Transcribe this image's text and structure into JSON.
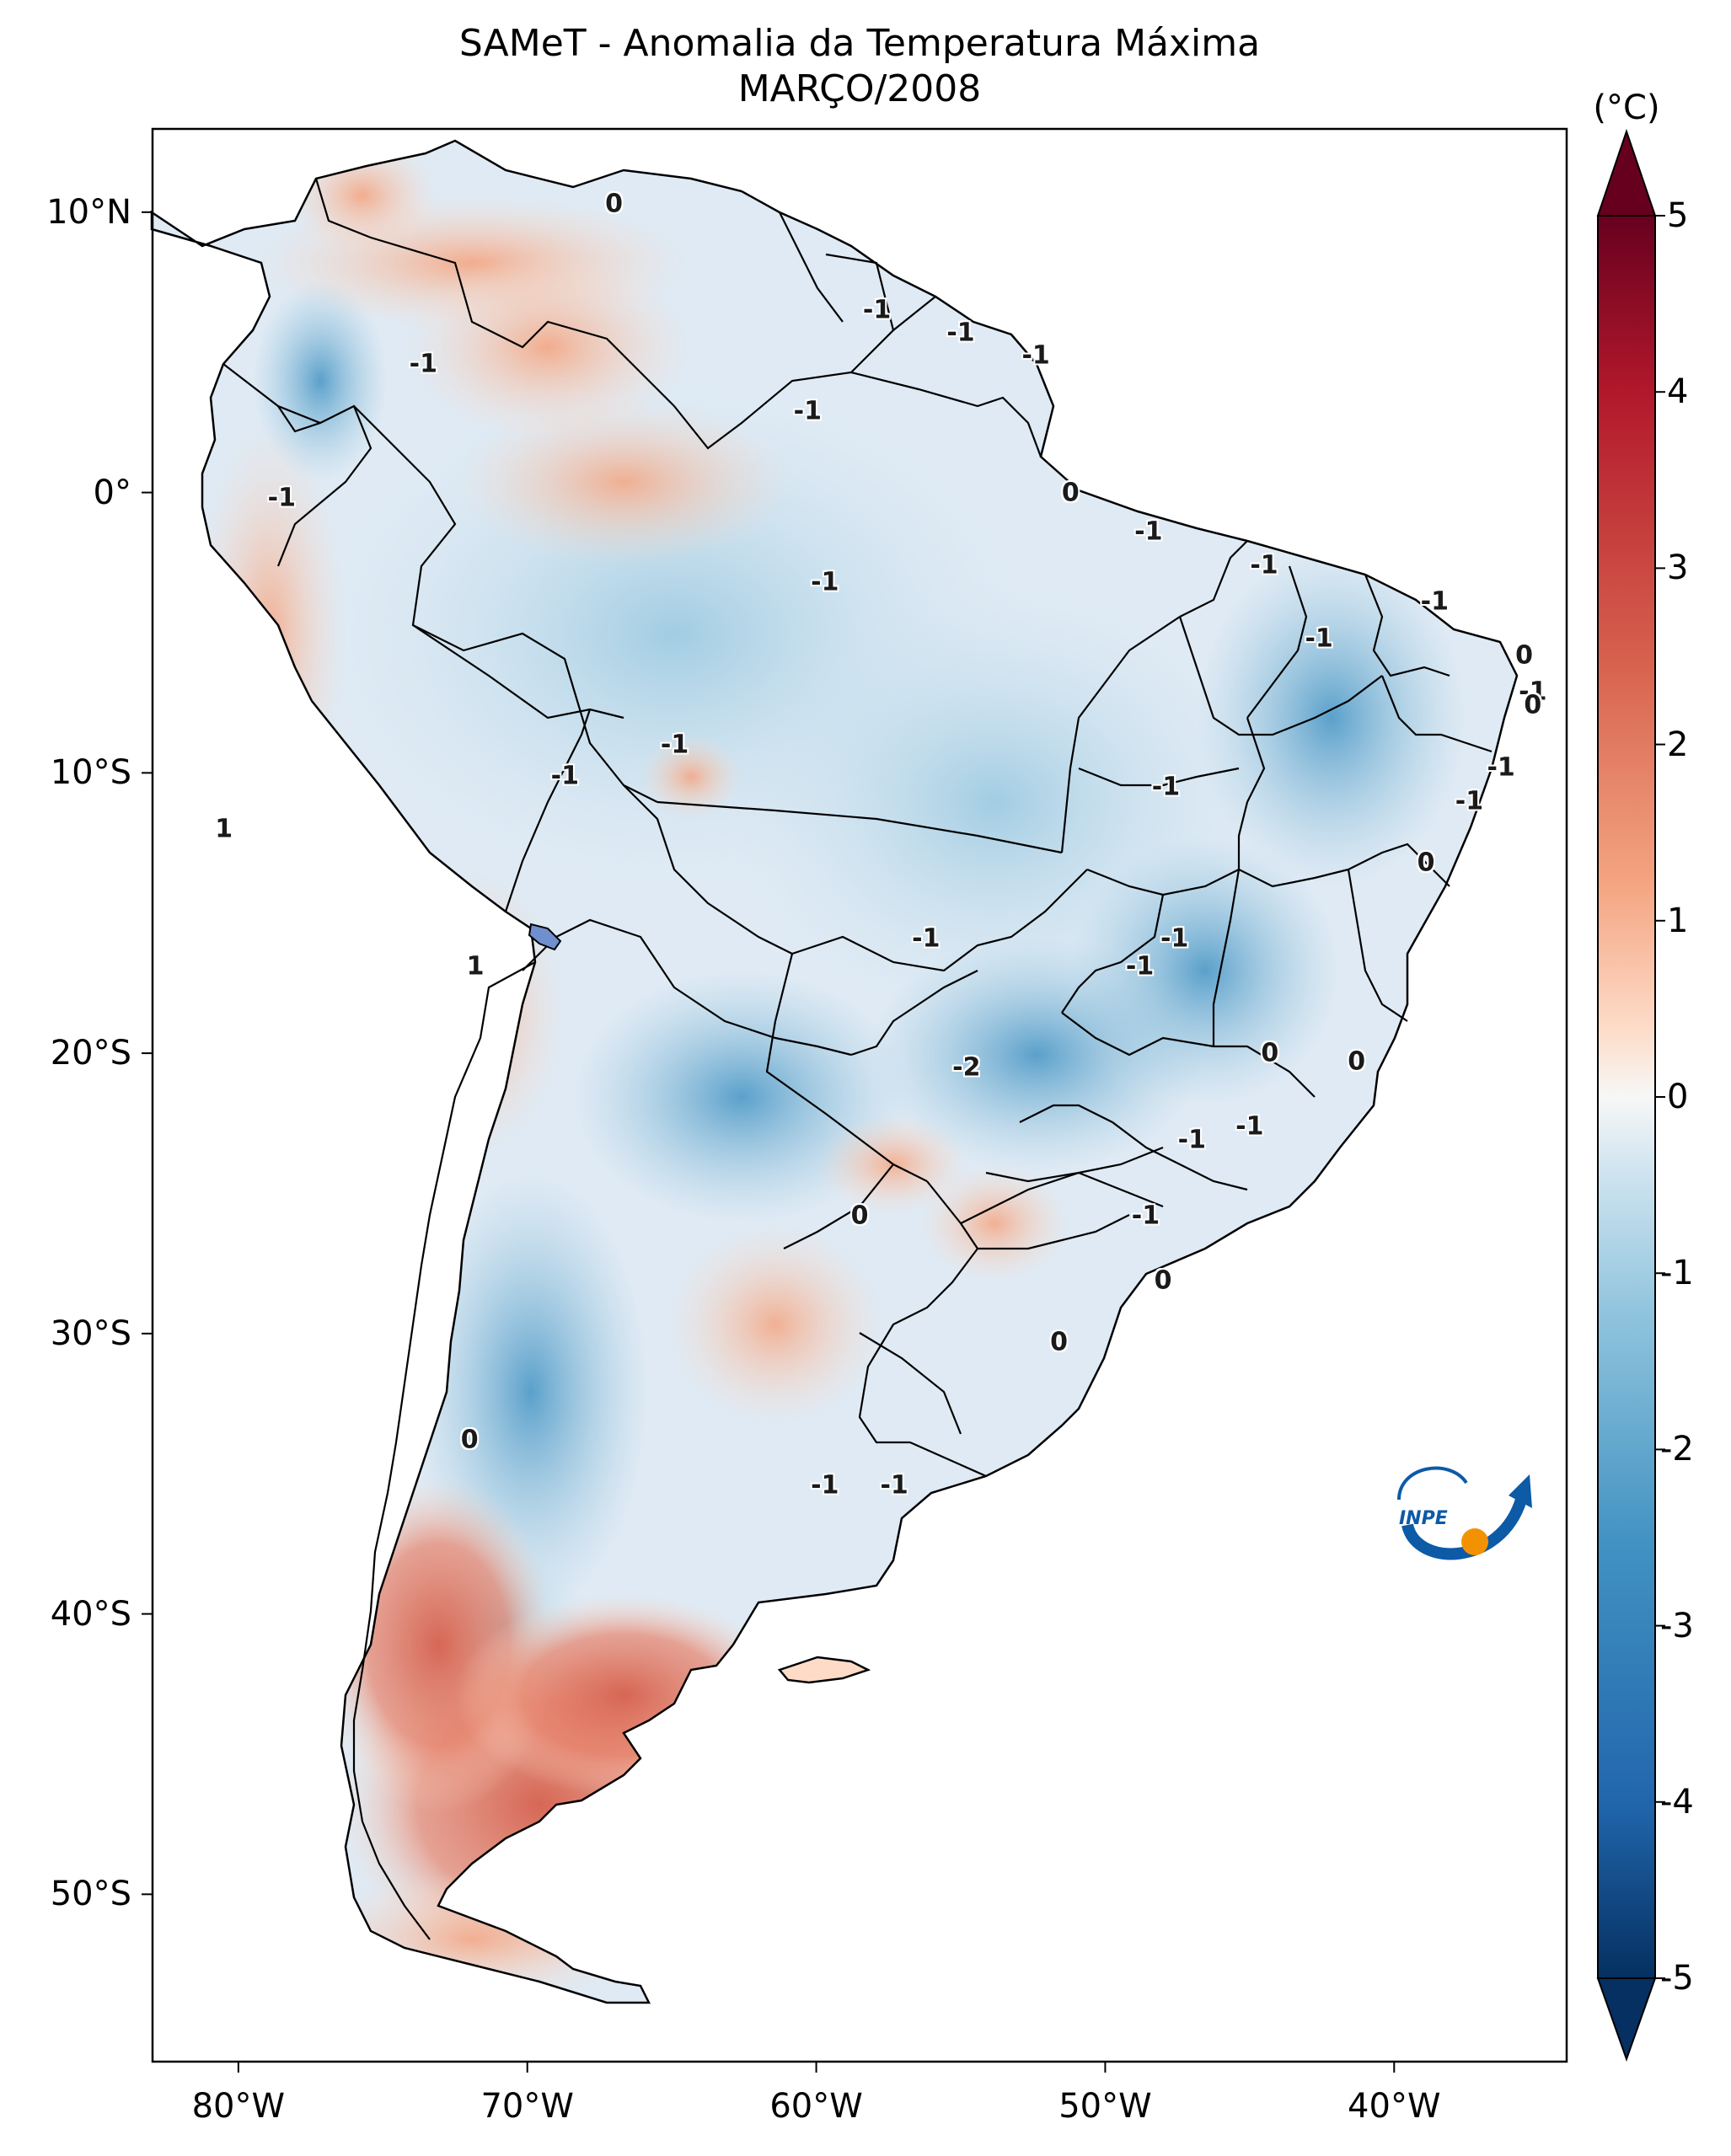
{
  "title": {
    "line1": "SAMeT - Anomalia da Temperatura Máxima",
    "line2": "MARÇO/2008"
  },
  "map": {
    "region": "South America",
    "variable": "Maximum temperature anomaly",
    "lon_range": [
      -83,
      -34
    ],
    "lat_range": [
      -56,
      13
    ],
    "y_ticks": [
      {
        "label": "10°N",
        "lat": 10
      },
      {
        "label": "0°",
        "lat": 0
      },
      {
        "label": "10°S",
        "lat": -10
      },
      {
        "label": "20°S",
        "lat": -20
      },
      {
        "label": "30°S",
        "lat": -30
      },
      {
        "label": "40°S",
        "lat": -40
      },
      {
        "label": "50°S",
        "lat": -50
      }
    ],
    "x_ticks": [
      {
        "label": "80°W",
        "lon": -80
      },
      {
        "label": "70°W",
        "lon": -70
      },
      {
        "label": "60°W",
        "lon": -60
      },
      {
        "label": "50°W",
        "lon": -50
      },
      {
        "label": "40°W",
        "lon": -40
      }
    ],
    "contour_labels": [
      {
        "text": "0",
        "lon": -67,
        "lat": 10.3
      },
      {
        "text": "-1",
        "lon": -73.6,
        "lat": 4.6
      },
      {
        "text": "-1",
        "lon": -57.9,
        "lat": 6.5
      },
      {
        "text": "-1",
        "lon": -55.0,
        "lat": 5.7
      },
      {
        "text": "-1",
        "lon": -52.4,
        "lat": 4.9
      },
      {
        "text": "-1",
        "lon": -60.3,
        "lat": 2.9
      },
      {
        "text": "0",
        "lon": -51.2,
        "lat": 0.0
      },
      {
        "text": "-1",
        "lon": -78.5,
        "lat": -0.2
      },
      {
        "text": "-1",
        "lon": -48.5,
        "lat": -1.4
      },
      {
        "text": "-1",
        "lon": -59.7,
        "lat": -3.2
      },
      {
        "text": "-1",
        "lon": -44.5,
        "lat": -2.6
      },
      {
        "text": "-1",
        "lon": -38.6,
        "lat": -3.9
      },
      {
        "text": "-1",
        "lon": -42.6,
        "lat": -5.2
      },
      {
        "text": "0",
        "lon": -35.5,
        "lat": -5.8
      },
      {
        "text": "-1",
        "lon": -35.2,
        "lat": -7.1
      },
      {
        "text": "0",
        "lon": -35.2,
        "lat": -7.6
      },
      {
        "text": "-1",
        "lon": -36.3,
        "lat": -9.8
      },
      {
        "text": "-1",
        "lon": -37.4,
        "lat": -11.0
      },
      {
        "text": "-1",
        "lon": -64.9,
        "lat": -9.0
      },
      {
        "text": "-1",
        "lon": -68.7,
        "lat": -10.1
      },
      {
        "text": "-1",
        "lon": -47.9,
        "lat": -10.5
      },
      {
        "text": "1",
        "lon": -80.5,
        "lat": -12.0
      },
      {
        "text": "0",
        "lon": -38.9,
        "lat": -13.2
      },
      {
        "text": "-1",
        "lon": -56.2,
        "lat": -15.9
      },
      {
        "text": "-1",
        "lon": -47.6,
        "lat": -15.9
      },
      {
        "text": "-1",
        "lon": -48.8,
        "lat": -16.9
      },
      {
        "text": "1",
        "lon": -71.8,
        "lat": -16.9
      },
      {
        "text": "-2",
        "lon": -54.8,
        "lat": -20.5
      },
      {
        "text": "0",
        "lon": -44.3,
        "lat": -20.0
      },
      {
        "text": "0",
        "lon": -41.3,
        "lat": -20.3
      },
      {
        "text": "-1",
        "lon": -47.0,
        "lat": -23.1
      },
      {
        "text": "-1",
        "lon": -45.0,
        "lat": -22.6
      },
      {
        "text": "0",
        "lon": -58.5,
        "lat": -25.8
      },
      {
        "text": "-1",
        "lon": -48.6,
        "lat": -25.8
      },
      {
        "text": "0",
        "lon": -48.0,
        "lat": -28.1
      },
      {
        "text": "0",
        "lon": -51.6,
        "lat": -30.3
      },
      {
        "text": "0",
        "lon": -72.0,
        "lat": -33.8
      },
      {
        "text": "-1",
        "lon": -59.7,
        "lat": -35.4
      },
      {
        "text": "-1",
        "lon": -57.3,
        "lat": -35.4
      }
    ]
  },
  "colorbar": {
    "unit": "(°C)",
    "range": [
      -5,
      5
    ],
    "ticks": [
      "5",
      "4",
      "3",
      "2",
      "1",
      "0",
      "-1",
      "-2",
      "-3",
      "-4",
      "-5"
    ],
    "colors": {
      "high": "#67001f",
      "mid_high": "#d6604d",
      "light_high": "#fddbc7",
      "zero": "#f7f7f7",
      "light_low": "#d1e5f0",
      "mid_low": "#4393c3",
      "low": "#053061"
    }
  },
  "logo": {
    "text": "INPE",
    "colors": {
      "blue": "#0d5aa7",
      "orange": "#f39200"
    }
  }
}
